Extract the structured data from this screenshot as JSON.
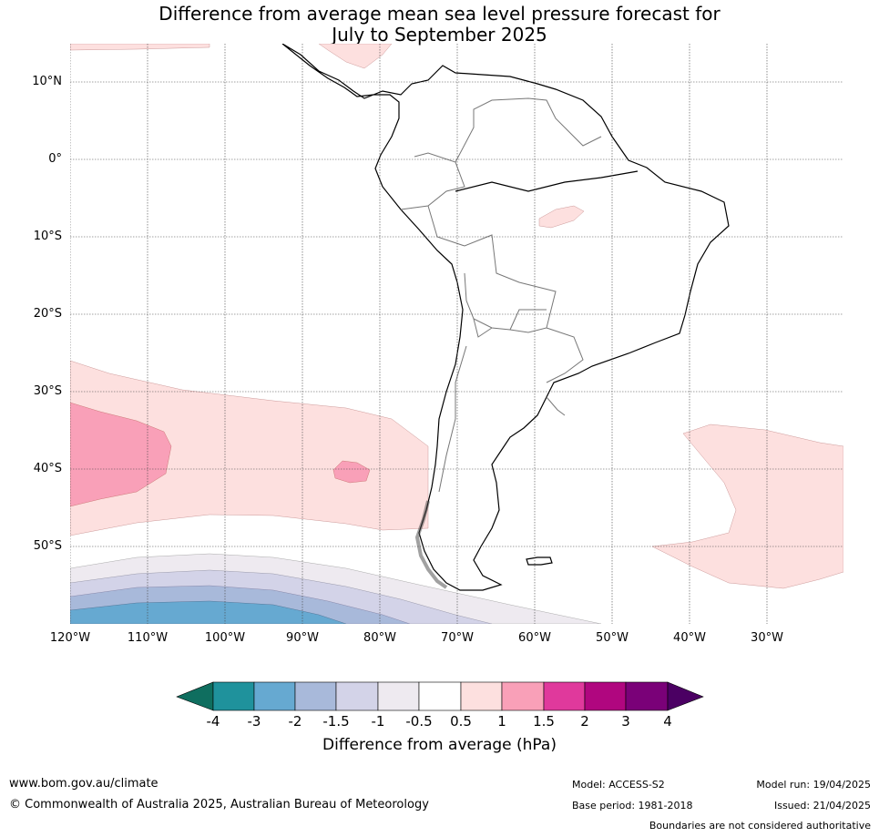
{
  "title": {
    "line1": "Difference from average mean sea level pressure forecast for",
    "line2": "July to September 2025"
  },
  "map": {
    "latitudes": [
      "10°N",
      "0°",
      "10°S",
      "20°S",
      "30°S",
      "40°S",
      "50°S"
    ],
    "longitudes": [
      "120°W",
      "110°W",
      "100°W",
      "90°W",
      "80°W",
      "70°W",
      "60°W",
      "50°W",
      "40°W",
      "30°W"
    ],
    "region": "South America",
    "projection_extent": {
      "lon": [
        -120,
        -20
      ],
      "lat": [
        -60,
        15
      ]
    }
  },
  "colorbar": {
    "label": "Difference from average (hPa)",
    "ticks": [
      "-4",
      "-3",
      "-2",
      "-1.5",
      "-1",
      "-0.5",
      "0.5",
      "1",
      "1.5",
      "2",
      "3",
      "4"
    ],
    "colors": {
      "below_min": "#0f6e5f",
      "c1": "#1f929c",
      "c2": "#66a9d1",
      "c3": "#a8b9da",
      "c4": "#d3d3e8",
      "c5": "#eeeaf0",
      "c6": "#ffffff",
      "c7": "#fde0df",
      "c8": "#f9a0b8",
      "c9": "#e0399c",
      "c10": "#b0067f",
      "c11": "#7a0178",
      "above_max": "#4b0063"
    }
  },
  "footer": {
    "website": "www.bom.gov.au/climate",
    "copyright": "© Commonwealth of Australia 2025, Australian Bureau of Meteorology",
    "model": "Model: ACCESS-S2",
    "base_period": "Base period: 1981-2018",
    "model_run": "Model run: 19/04/2025",
    "issued": "Issued: 21/04/2025",
    "disclaimer": "Boundaries are not considered authoritative"
  }
}
